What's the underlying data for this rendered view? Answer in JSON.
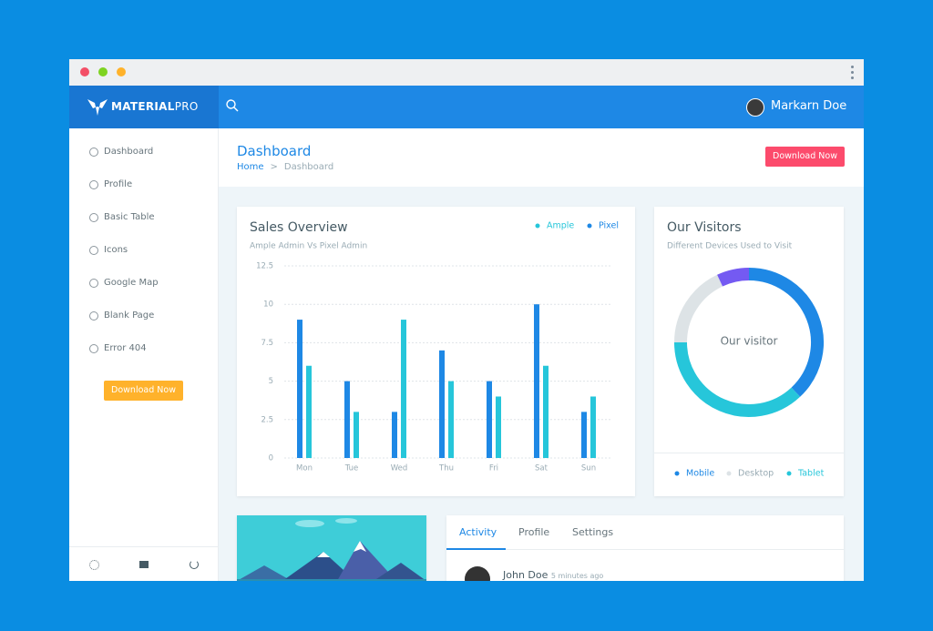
{
  "topbar": {
    "brand_main": "MATERIAL",
    "brand_accent": "PRO",
    "user": "Markarn Doe"
  },
  "sidebar": {
    "menu": [
      "Dashboard",
      "Profile",
      "Basic Table",
      "Icons",
      "Google Map",
      "Blank Page",
      "Error 404"
    ],
    "button": "Download Now"
  },
  "page_header": {
    "title": "Dashboard",
    "breadcrumb": [
      "Home",
      "Dashboard"
    ],
    "button": "Download Now"
  },
  "sales_chart": {
    "type": "bar",
    "title": "Sales Overview",
    "subtitle": "Ample Admin Vs Pixel Admin",
    "categories": [
      "Mon",
      "Tue",
      "Wed",
      "Thu",
      "Fri",
      "Sat",
      "Sun"
    ],
    "series": [
      {
        "name": "Ample",
        "color": "#26c6da",
        "values": [
          6,
          3,
          9,
          5,
          4,
          6,
          4
        ]
      },
      {
        "name": "Pixel",
        "color": "#1e88e5",
        "values": [
          9,
          5,
          3,
          7,
          5,
          10,
          3
        ]
      }
    ],
    "ylim": [
      0,
      12.5
    ],
    "yticks": [
      0,
      2.5,
      5,
      7.5,
      10,
      12.5
    ],
    "grid": true
  },
  "visitors_chart": {
    "type": "donut",
    "title": "Our Visitors",
    "subtitle": "Different Devices Used to Visit",
    "center_label": "Our visitor",
    "categories": [
      "Mobile",
      "Tablet",
      "Desktop",
      null
    ],
    "colors": [
      "#1e88e5",
      "#26c6da",
      "#dde3e6",
      "#745af2"
    ],
    "values": [
      38,
      37,
      18,
      7
    ]
  },
  "activity": {
    "tabs": [
      "Activity",
      "Profile",
      "Settings"
    ],
    "items": [
      {
        "name": "John Doe",
        "time": "5 minutes ago"
      }
    ]
  }
}
